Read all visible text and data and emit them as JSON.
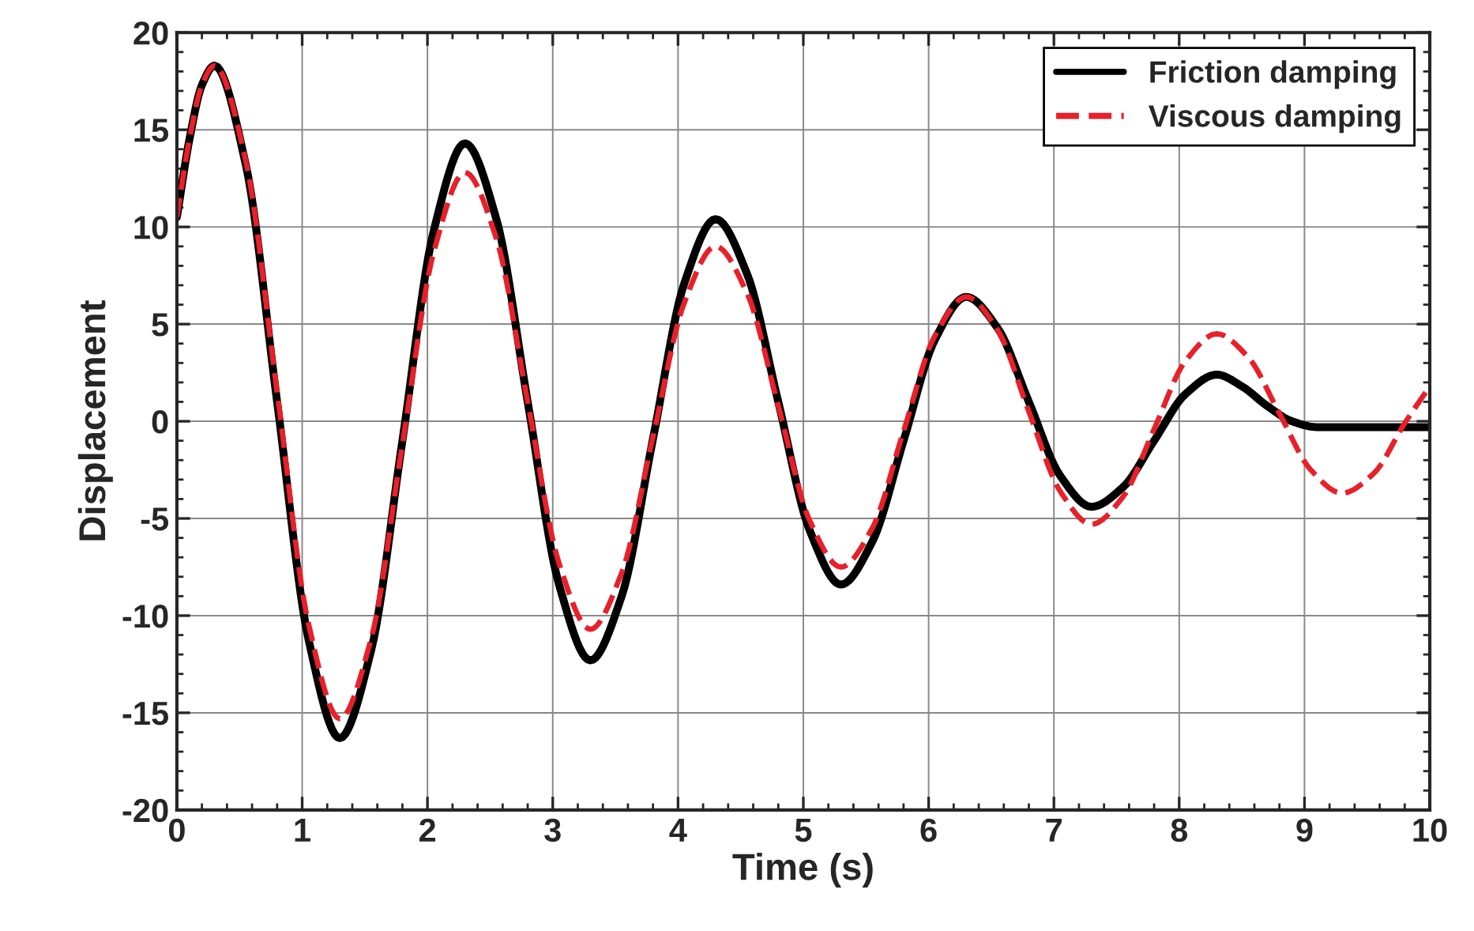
{
  "chart_data": {
    "type": "line",
    "xlabel": "Time (s)",
    "ylabel": "Displacement",
    "xlim": [
      0,
      10
    ],
    "xticks": [
      0,
      1,
      2,
      3,
      4,
      5,
      6,
      7,
      8,
      9,
      10
    ],
    "ylim": [
      -20,
      20
    ],
    "yticks": [
      -20,
      -15,
      -10,
      -5,
      0,
      5,
      10,
      15,
      20
    ],
    "grid": true,
    "legend": "top right",
    "marker": "none",
    "series": [
      {
        "name": "Friction damping",
        "color": "#000000",
        "line_style": "solid",
        "x": [
          0,
          0.1,
          0.2,
          0.3,
          0.55,
          0.8,
          1.05,
          1.3,
          1.55,
          1.8,
          2.05,
          2.3,
          2.55,
          2.8,
          3.05,
          3.3,
          3.55,
          3.8,
          4.05,
          4.3,
          4.55,
          4.8,
          5.05,
          5.3,
          5.55,
          5.8,
          6.05,
          6.3,
          6.55,
          6.8,
          7.05,
          7.3,
          7.55,
          7.8,
          8.05,
          8.3,
          8.5,
          8.7,
          8.9,
          9.1,
          10
        ],
        "values": [
          10.5,
          14.5,
          17.3,
          18.3,
          13.2,
          1.0,
          -11.2,
          -16.3,
          -11.8,
          -1.0,
          9.8,
          14.3,
          10.4,
          1.0,
          -8.4,
          -12.3,
          -9.0,
          -0.9,
          7.1,
          10.4,
          7.6,
          1.0,
          -5.6,
          -8.4,
          -6.2,
          -1.0,
          4.2,
          6.4,
          4.8,
          1.0,
          -2.8,
          -4.4,
          -3.4,
          -1.0,
          1.4,
          2.4,
          1.8,
          0.8,
          0.0,
          -0.3,
          -0.3
        ]
      },
      {
        "name": "Viscous damping",
        "color": "#e8202a",
        "line_style": "dashed",
        "x": [
          0,
          0.1,
          0.2,
          0.3,
          0.55,
          0.8,
          1.05,
          1.3,
          1.55,
          1.8,
          2.05,
          2.3,
          2.55,
          2.8,
          3.05,
          3.3,
          3.55,
          3.8,
          4.05,
          4.3,
          4.55,
          4.8,
          5.05,
          5.3,
          5.55,
          5.8,
          6.05,
          6.3,
          6.55,
          6.8,
          7.05,
          7.3,
          7.55,
          7.8,
          8.05,
          8.3,
          8.55,
          8.8,
          9.05,
          9.3,
          9.55,
          9.8,
          10
        ],
        "values": [
          10.5,
          14.5,
          17.3,
          18.3,
          13.4,
          1.5,
          -10.4,
          -15.3,
          -11.2,
          -1.2,
          8.7,
          12.8,
          9.4,
          1.0,
          -7.3,
          -10.7,
          -7.8,
          -0.8,
          6.1,
          9.0,
          6.6,
          0.8,
          -5.1,
          -7.5,
          -5.5,
          -0.5,
          4.4,
          6.4,
          4.7,
          0.5,
          -3.6,
          -5.3,
          -3.9,
          -0.4,
          3.1,
          4.5,
          3.3,
          0.4,
          -2.5,
          -3.7,
          -2.7,
          -0.1,
          1.8
        ]
      }
    ]
  }
}
